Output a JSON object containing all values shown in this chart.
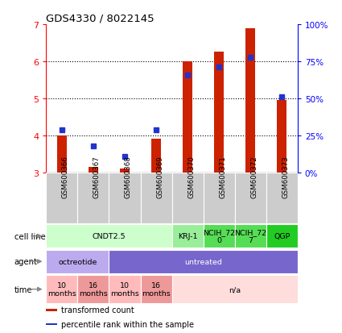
{
  "title": "GDS4330 / 8022145",
  "samples": [
    "GSM600366",
    "GSM600367",
    "GSM600368",
    "GSM600369",
    "GSM600370",
    "GSM600371",
    "GSM600372",
    "GSM600373"
  ],
  "transformed_counts": [
    4.0,
    3.15,
    3.1,
    3.9,
    6.0,
    6.25,
    6.9,
    4.95
  ],
  "percentile_ranks": [
    4.15,
    3.72,
    3.43,
    4.15,
    5.62,
    5.85,
    6.1,
    5.05
  ],
  "bar_base": 3.0,
  "ylim": [
    3.0,
    7.0
  ],
  "y2lim": [
    0,
    100
  ],
  "yticks_left": [
    3,
    4,
    5,
    6,
    7
  ],
  "yticks_right": [
    0,
    25,
    50,
    75,
    100
  ],
  "bar_color": "#cc2200",
  "dot_color": "#2233cc",
  "sample_box_color": "#cccccc",
  "gridline_color": "black",
  "cell_line_row": {
    "label": "cell line",
    "groups": [
      {
        "text": "CNDT2.5",
        "start": 0,
        "end": 4,
        "color": "#ccffcc"
      },
      {
        "text": "KRJ-1",
        "start": 4,
        "end": 5,
        "color": "#99ee99"
      },
      {
        "text": "NCIH_72\n0",
        "start": 5,
        "end": 6,
        "color": "#55dd55"
      },
      {
        "text": "NCIH_72\n7",
        "start": 6,
        "end": 7,
        "color": "#55dd55"
      },
      {
        "text": "QGP",
        "start": 7,
        "end": 8,
        "color": "#22cc22"
      }
    ]
  },
  "agent_row": {
    "label": "agent",
    "groups": [
      {
        "text": "octreotide",
        "start": 0,
        "end": 2,
        "color": "#bbaaee"
      },
      {
        "text": "untreated",
        "start": 2,
        "end": 8,
        "color": "#7766cc"
      }
    ]
  },
  "time_row": {
    "label": "time",
    "groups": [
      {
        "text": "10\nmonths",
        "start": 0,
        "end": 1,
        "color": "#ffbbbb"
      },
      {
        "text": "16\nmonths",
        "start": 1,
        "end": 2,
        "color": "#ee9999"
      },
      {
        "text": "10\nmonths",
        "start": 2,
        "end": 3,
        "color": "#ffbbbb"
      },
      {
        "text": "16\nmonths",
        "start": 3,
        "end": 4,
        "color": "#ee9999"
      },
      {
        "text": "n/a",
        "start": 4,
        "end": 8,
        "color": "#ffdddd"
      }
    ]
  },
  "legend_items": [
    {
      "color": "#cc2200",
      "label": "transformed count"
    },
    {
      "color": "#2233cc",
      "label": "percentile rank within the sample"
    }
  ]
}
